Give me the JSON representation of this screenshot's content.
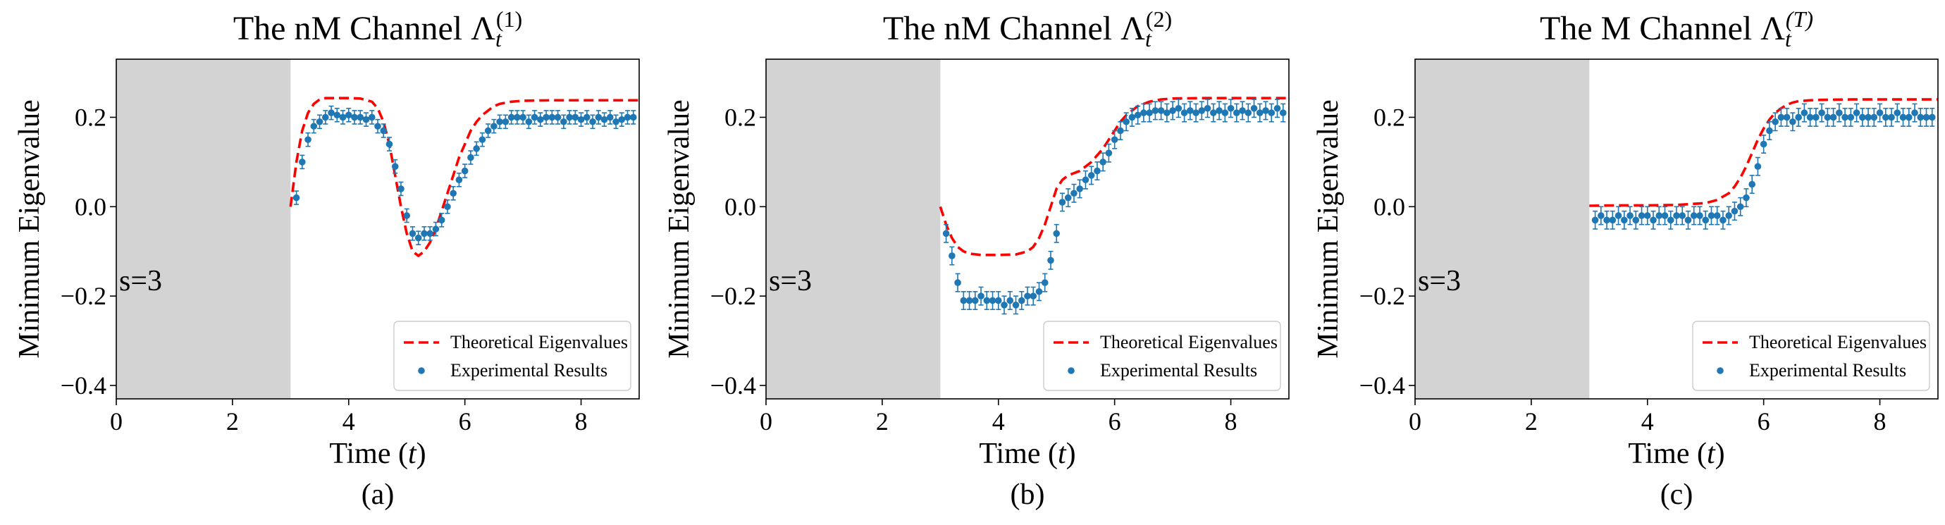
{
  "shared": {
    "x_label": "Time",
    "x_label_var": "t",
    "y_label": "Minimum Eigenvalue",
    "legend": [
      "Theoretical Eigenvalues",
      "Experimental Results"
    ],
    "shaded_label": "s=3",
    "x_ticks": [
      "0",
      "2",
      "4",
      "6",
      "8"
    ],
    "y_ticks": [
      "−0.4",
      "−0.2",
      "0.0",
      "0.2"
    ],
    "colors": {
      "theory": "#ff0000",
      "experiment": "#1f77b4",
      "shade": "#d3d3d3"
    }
  },
  "chart_data": [
    {
      "type": "line",
      "title": "The nM Channel Λ",
      "title_sub": "t",
      "title_sup": "(1)",
      "caption": "(a)",
      "xlim": [
        0,
        9
      ],
      "ylim": [
        -0.43,
        0.33
      ],
      "x_ticks": [
        0,
        2,
        4,
        6,
        8
      ],
      "y_ticks": [
        -0.4,
        -0.2,
        0.0,
        0.2
      ],
      "shaded_region": [
        0,
        3
      ],
      "legend_position": "lower-right",
      "series": [
        {
          "name": "Theoretical Eigenvalues",
          "style": "dashed-line",
          "x": [
            3.0,
            3.1,
            3.2,
            3.3,
            3.4,
            3.5,
            3.6,
            3.8,
            4.0,
            4.2,
            4.4,
            4.5,
            4.6,
            4.7,
            4.8,
            4.9,
            5.0,
            5.1,
            5.2,
            5.3,
            5.4,
            5.5,
            5.6,
            5.7,
            5.8,
            5.9,
            6.0,
            6.1,
            6.2,
            6.3,
            6.4,
            6.5,
            6.6,
            6.8,
            7.0,
            7.5,
            8.0,
            8.5,
            9.0
          ],
          "y": [
            0.0,
            0.1,
            0.17,
            0.21,
            0.23,
            0.24,
            0.243,
            0.243,
            0.243,
            0.242,
            0.235,
            0.22,
            0.19,
            0.14,
            0.07,
            0.0,
            -0.06,
            -0.1,
            -0.11,
            -0.1,
            -0.08,
            -0.05,
            -0.01,
            0.03,
            0.07,
            0.11,
            0.14,
            0.17,
            0.19,
            0.205,
            0.215,
            0.225,
            0.23,
            0.235,
            0.237,
            0.238,
            0.238,
            0.238,
            0.238
          ]
        },
        {
          "name": "Experimental Results",
          "style": "points-with-errorbars",
          "error": 0.015,
          "x": [
            3.1,
            3.2,
            3.3,
            3.4,
            3.5,
            3.6,
            3.7,
            3.8,
            3.9,
            4.0,
            4.1,
            4.2,
            4.3,
            4.4,
            4.5,
            4.6,
            4.7,
            4.8,
            4.9,
            5.0,
            5.1,
            5.2,
            5.3,
            5.4,
            5.5,
            5.6,
            5.7,
            5.8,
            5.9,
            6.0,
            6.1,
            6.2,
            6.3,
            6.4,
            6.5,
            6.6,
            6.7,
            6.8,
            6.9,
            7.0,
            7.1,
            7.2,
            7.3,
            7.4,
            7.5,
            7.6,
            7.7,
            7.8,
            7.9,
            8.0,
            8.1,
            8.2,
            8.3,
            8.4,
            8.5,
            8.6,
            8.7,
            8.8,
            8.9
          ],
          "y": [
            0.02,
            0.1,
            0.15,
            0.18,
            0.19,
            0.2,
            0.21,
            0.205,
            0.2,
            0.205,
            0.2,
            0.2,
            0.195,
            0.2,
            0.18,
            0.17,
            0.14,
            0.09,
            0.04,
            -0.02,
            -0.06,
            -0.07,
            -0.06,
            -0.06,
            -0.05,
            -0.03,
            0.0,
            0.03,
            0.06,
            0.08,
            0.11,
            0.13,
            0.15,
            0.17,
            0.18,
            0.19,
            0.19,
            0.2,
            0.2,
            0.2,
            0.19,
            0.2,
            0.195,
            0.2,
            0.2,
            0.2,
            0.19,
            0.2,
            0.2,
            0.195,
            0.2,
            0.19,
            0.2,
            0.195,
            0.2,
            0.19,
            0.195,
            0.2,
            0.2
          ]
        }
      ]
    },
    {
      "type": "line",
      "title": "The nM Channel Λ",
      "title_sub": "t",
      "title_sup": "(2)",
      "caption": "(b)",
      "xlim": [
        0,
        9
      ],
      "ylim": [
        -0.43,
        0.33
      ],
      "x_ticks": [
        0,
        2,
        4,
        6,
        8
      ],
      "y_ticks": [
        -0.4,
        -0.2,
        0.0,
        0.2
      ],
      "shaded_region": [
        0,
        3
      ],
      "legend_position": "lower-right",
      "series": [
        {
          "name": "Theoretical Eigenvalues",
          "style": "dashed-line",
          "x": [
            3.0,
            3.1,
            3.2,
            3.3,
            3.4,
            3.5,
            3.7,
            4.0,
            4.3,
            4.5,
            4.6,
            4.7,
            4.8,
            4.9,
            5.0,
            5.1,
            5.2,
            5.4,
            5.6,
            5.8,
            5.9,
            6.0,
            6.1,
            6.2,
            6.3,
            6.4,
            6.5,
            6.6,
            6.8,
            7.0,
            7.5,
            8.0,
            8.5,
            9.0
          ],
          "y": [
            0.0,
            -0.04,
            -0.07,
            -0.09,
            -0.1,
            -0.105,
            -0.108,
            -0.108,
            -0.107,
            -0.1,
            -0.09,
            -0.07,
            -0.04,
            0.0,
            0.04,
            0.06,
            0.07,
            0.08,
            0.1,
            0.13,
            0.15,
            0.17,
            0.19,
            0.205,
            0.215,
            0.225,
            0.23,
            0.235,
            0.24,
            0.242,
            0.243,
            0.243,
            0.243,
            0.243
          ]
        },
        {
          "name": "Experimental Results",
          "style": "points-with-errorbars",
          "error": 0.02,
          "x": [
            3.1,
            3.2,
            3.3,
            3.4,
            3.5,
            3.6,
            3.7,
            3.8,
            3.9,
            4.0,
            4.1,
            4.2,
            4.3,
            4.4,
            4.5,
            4.6,
            4.7,
            4.8,
            4.9,
            5.0,
            5.1,
            5.2,
            5.3,
            5.4,
            5.5,
            5.6,
            5.7,
            5.8,
            5.9,
            6.0,
            6.1,
            6.2,
            6.3,
            6.4,
            6.5,
            6.6,
            6.7,
            6.8,
            6.9,
            7.0,
            7.1,
            7.2,
            7.3,
            7.4,
            7.5,
            7.6,
            7.7,
            7.8,
            7.9,
            8.0,
            8.1,
            8.2,
            8.3,
            8.4,
            8.5,
            8.6,
            8.7,
            8.8,
            8.9
          ],
          "y": [
            -0.06,
            -0.11,
            -0.17,
            -0.21,
            -0.21,
            -0.21,
            -0.2,
            -0.21,
            -0.21,
            -0.21,
            -0.22,
            -0.21,
            -0.22,
            -0.21,
            -0.2,
            -0.2,
            -0.19,
            -0.17,
            -0.12,
            -0.06,
            0.01,
            0.02,
            0.03,
            0.04,
            0.06,
            0.07,
            0.08,
            0.1,
            0.12,
            0.15,
            0.17,
            0.19,
            0.2,
            0.205,
            0.21,
            0.21,
            0.215,
            0.215,
            0.21,
            0.215,
            0.22,
            0.21,
            0.215,
            0.21,
            0.215,
            0.22,
            0.21,
            0.215,
            0.21,
            0.22,
            0.21,
            0.215,
            0.21,
            0.22,
            0.21,
            0.215,
            0.21,
            0.22,
            0.21
          ]
        }
      ]
    },
    {
      "type": "line",
      "title": "The M Channel Λ",
      "title_sub": "t",
      "title_sup": "(T)",
      "caption": "(c)",
      "xlim": [
        0,
        9
      ],
      "ylim": [
        -0.43,
        0.33
      ],
      "x_ticks": [
        0,
        2,
        4,
        6,
        8
      ],
      "y_ticks": [
        -0.4,
        -0.2,
        0.0,
        0.2
      ],
      "shaded_region": [
        0,
        3
      ],
      "legend_position": "lower-right",
      "series": [
        {
          "name": "Theoretical Eigenvalues",
          "style": "dashed-line",
          "x": [
            3.0,
            3.5,
            4.0,
            4.5,
            5.0,
            5.2,
            5.4,
            5.5,
            5.6,
            5.7,
            5.8,
            5.9,
            6.0,
            6.1,
            6.2,
            6.3,
            6.4,
            6.5,
            6.6,
            6.8,
            7.0,
            7.5,
            8.0,
            8.5,
            9.0
          ],
          "y": [
            0.002,
            0.003,
            0.003,
            0.004,
            0.008,
            0.015,
            0.03,
            0.045,
            0.065,
            0.09,
            0.12,
            0.15,
            0.175,
            0.195,
            0.21,
            0.22,
            0.228,
            0.233,
            0.236,
            0.238,
            0.239,
            0.24,
            0.24,
            0.24,
            0.24
          ]
        },
        {
          "name": "Experimental Results",
          "style": "points-with-errorbars",
          "error": 0.02,
          "x": [
            3.1,
            3.2,
            3.3,
            3.4,
            3.5,
            3.6,
            3.7,
            3.8,
            3.9,
            4.0,
            4.1,
            4.2,
            4.3,
            4.4,
            4.5,
            4.6,
            4.7,
            4.8,
            4.9,
            5.0,
            5.1,
            5.2,
            5.3,
            5.4,
            5.5,
            5.6,
            5.7,
            5.8,
            5.9,
            6.0,
            6.1,
            6.2,
            6.3,
            6.4,
            6.5,
            6.6,
            6.7,
            6.8,
            6.9,
            7.0,
            7.1,
            7.2,
            7.3,
            7.4,
            7.5,
            7.6,
            7.7,
            7.8,
            7.9,
            8.0,
            8.1,
            8.2,
            8.3,
            8.4,
            8.5,
            8.6,
            8.7,
            8.8,
            8.9
          ],
          "y": [
            -0.03,
            -0.02,
            -0.03,
            -0.03,
            -0.02,
            -0.03,
            -0.02,
            -0.03,
            -0.02,
            -0.02,
            -0.03,
            -0.02,
            -0.02,
            -0.03,
            -0.02,
            -0.02,
            -0.03,
            -0.02,
            -0.02,
            -0.03,
            -0.02,
            -0.02,
            -0.03,
            -0.02,
            -0.01,
            0.0,
            0.02,
            0.05,
            0.09,
            0.14,
            0.17,
            0.19,
            0.2,
            0.2,
            0.19,
            0.2,
            0.21,
            0.2,
            0.2,
            0.21,
            0.2,
            0.2,
            0.21,
            0.2,
            0.2,
            0.21,
            0.2,
            0.2,
            0.2,
            0.21,
            0.2,
            0.2,
            0.21,
            0.2,
            0.2,
            0.21,
            0.2,
            0.2,
            0.2
          ]
        }
      ]
    }
  ]
}
